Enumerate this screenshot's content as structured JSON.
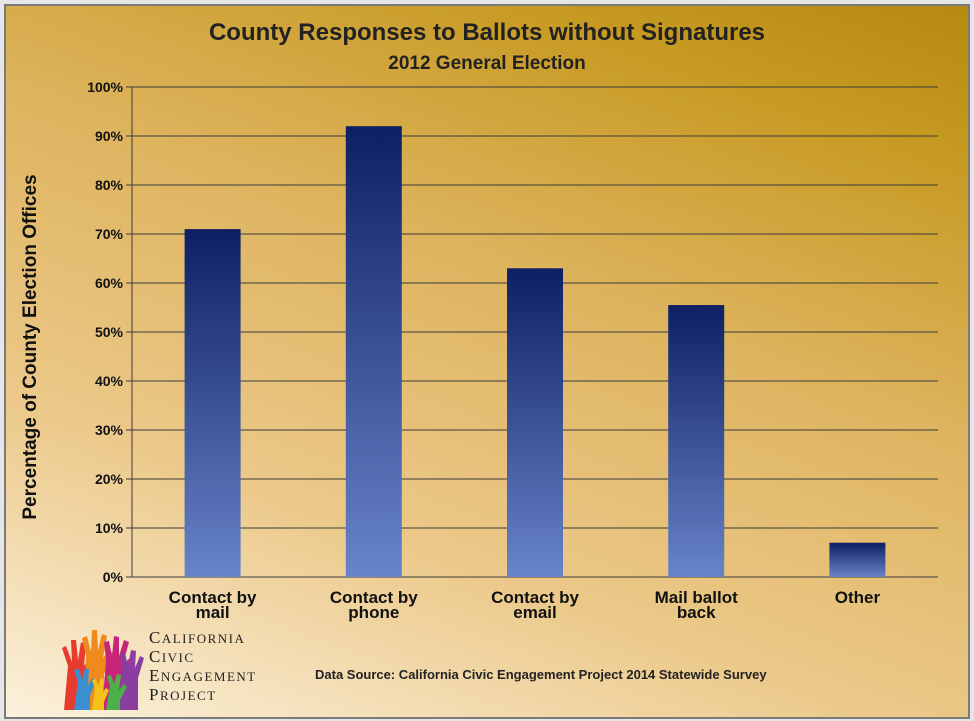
{
  "chart_data": {
    "type": "bar",
    "title": "County Responses to Ballots without Signatures",
    "subtitle": "2012 General Election",
    "xlabel": "",
    "ylabel": "Percentage of County Election Offices",
    "categories": [
      [
        "Contact by",
        "mail"
      ],
      [
        "Contact by",
        "phone"
      ],
      [
        "Contact by",
        "email"
      ],
      [
        "Mail ballot",
        "back"
      ],
      [
        "Other"
      ]
    ],
    "values": [
      71,
      92,
      63,
      55.5,
      7
    ],
    "ylim": [
      0,
      100
    ],
    "yticks": [
      "0%",
      "10%",
      "20%",
      "30%",
      "40%",
      "50%",
      "60%",
      "70%",
      "80%",
      "90%",
      "100%"
    ],
    "grid": true,
    "bar_colors": {
      "top": "#0e1f63",
      "bottom": "#6984c9"
    }
  },
  "footer": {
    "source": "Data Source: California Civic Engagement Project 2014 Statewide Survey"
  },
  "logo": {
    "icon": "raised-hands-icon",
    "lines": [
      {
        "first": "C",
        "rest": "ALIFORNIA"
      },
      {
        "first": "C",
        "rest": "IVIC"
      },
      {
        "first": "E",
        "rest": "NGAGEMENT"
      },
      {
        "first": "P",
        "rest": "ROJECT"
      }
    ]
  }
}
